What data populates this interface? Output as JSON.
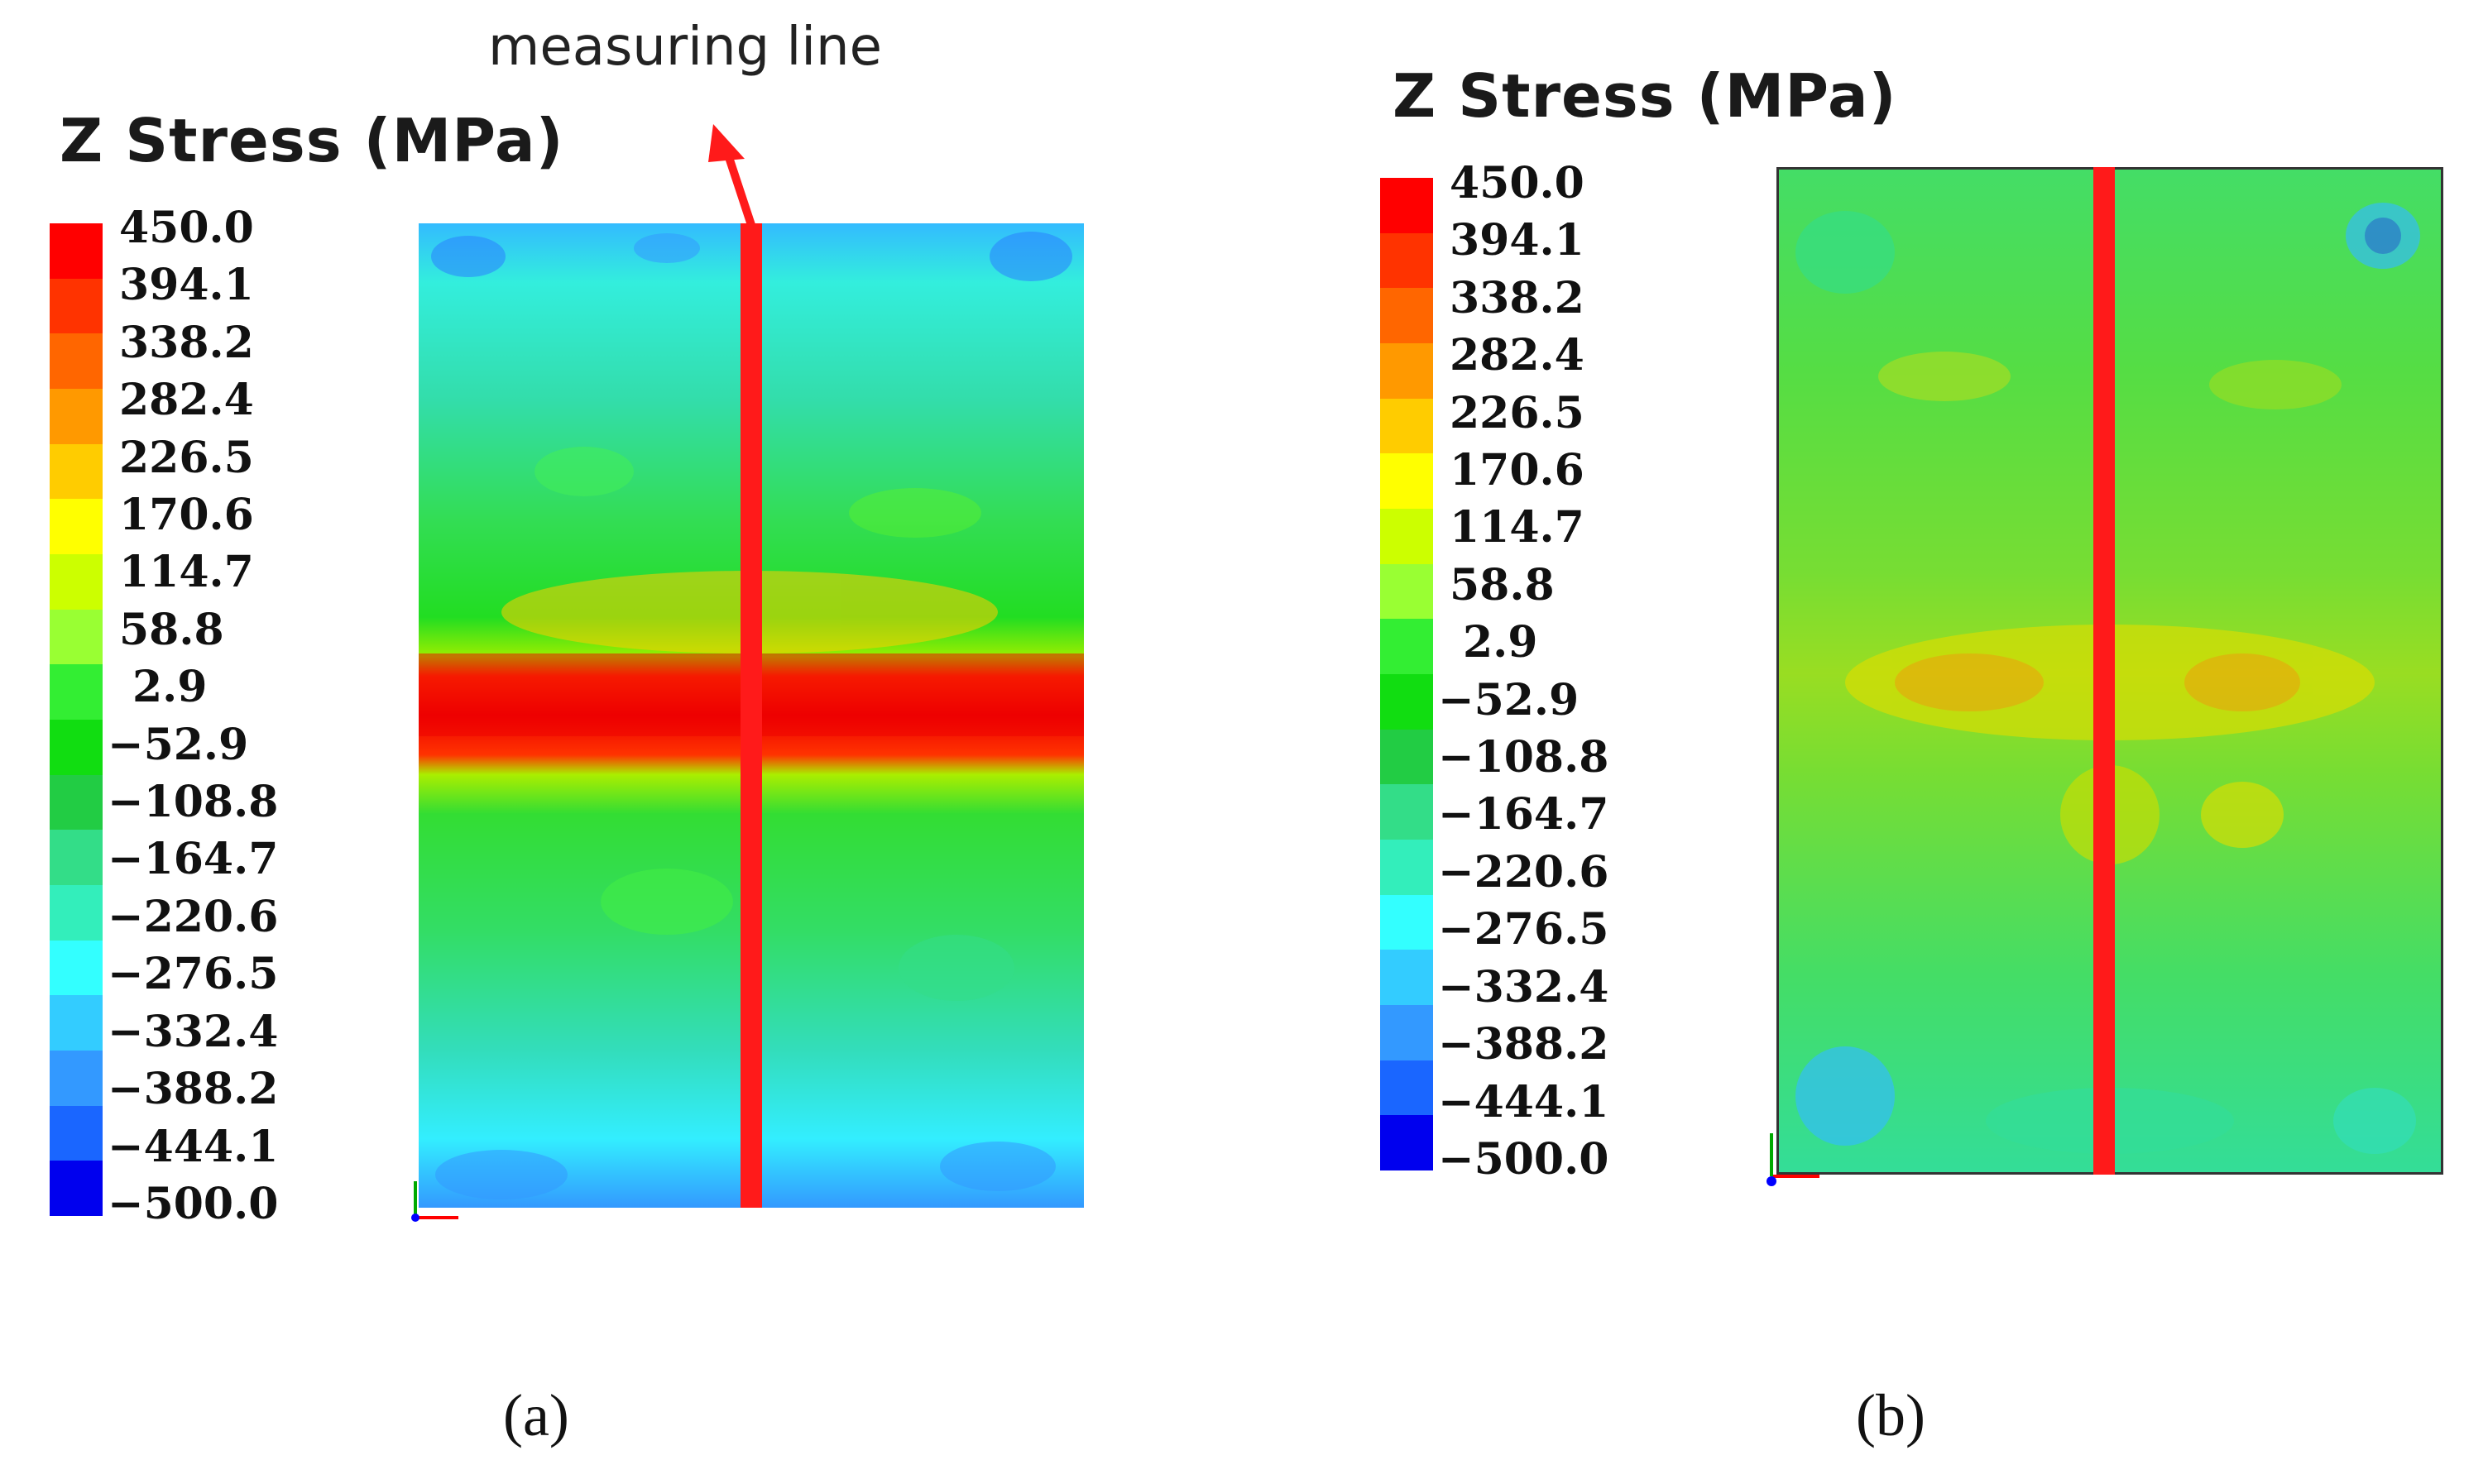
{
  "panels": [
    {
      "id": "a",
      "title": "Z Stress (MPa)",
      "caption": "(a)",
      "annotation": "measuring line",
      "legend_values": [
        "450.0",
        "394.1",
        "338.2",
        "282.4",
        "226.5",
        "170.6",
        "114.7",
        "58.8",
        "2.9",
        "−52.9",
        "−108.8",
        "−164.7",
        "−220.6",
        "−276.5",
        "−332.4",
        "−388.2",
        "−444.1",
        "−500.0"
      ]
    },
    {
      "id": "b",
      "title": "Z Stress (MPa)",
      "caption": "(b)",
      "legend_values": [
        "450.0",
        "394.1",
        "338.2",
        "282.4",
        "226.5",
        "170.6",
        "114.7",
        "58.8",
        "2.9",
        "−52.9",
        "−108.8",
        "−164.7",
        "−220.6",
        "−276.5",
        "−332.4",
        "−388.2",
        "−444.1",
        "−500.0"
      ]
    }
  ],
  "colors": {
    "scale": [
      "#ff0000",
      "#ff3300",
      "#ff6600",
      "#ff9900",
      "#ffcc00",
      "#ffff00",
      "#ccff00",
      "#99ff33",
      "#33ee33",
      "#11dd11",
      "#22cc44",
      "#33dd88",
      "#33eebb",
      "#33ffff",
      "#33ccff",
      "#3399ff",
      "#1a66ff",
      "#0000ee"
    ],
    "measuring_line": "#ff1a1a",
    "axis_red": "#ff0000",
    "axis_green": "#00aa00",
    "axis_blue": "#0000ff"
  }
}
